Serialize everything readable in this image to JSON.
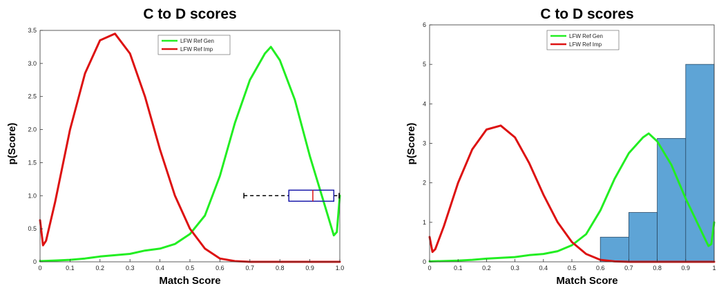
{
  "chart_data": [
    {
      "type": "line",
      "title": "C to D scores",
      "xlabel": "Match Score",
      "ylabel": "p(Score)",
      "xlim": [
        0,
        1
      ],
      "ylim": [
        0,
        3.5
      ],
      "xticks": [
        "0",
        "0.1",
        "0.2",
        "0.3",
        "0.4",
        "0.5",
        "0.6",
        "0.7",
        "0.8",
        "0.9",
        "1.0"
      ],
      "yticks": [
        "0",
        "0.5",
        "1.0",
        "1.5",
        "2.0",
        "2.5",
        "3.0",
        "3.5"
      ],
      "legend_position": "top",
      "grid": false,
      "series": [
        {
          "name": "LFW Ref Gen",
          "color": "#22ee22",
          "x": [
            0,
            0.05,
            0.1,
            0.15,
            0.2,
            0.25,
            0.3,
            0.35,
            0.4,
            0.45,
            0.5,
            0.55,
            0.6,
            0.65,
            0.7,
            0.75,
            0.77,
            0.8,
            0.85,
            0.9,
            0.95,
            0.97,
            0.98,
            0.99,
            1.0
          ],
          "y": [
            0.01,
            0.02,
            0.03,
            0.05,
            0.08,
            0.1,
            0.12,
            0.17,
            0.2,
            0.27,
            0.42,
            0.7,
            1.3,
            2.1,
            2.75,
            3.15,
            3.25,
            3.05,
            2.45,
            1.6,
            0.85,
            0.55,
            0.4,
            0.45,
            1.0
          ]
        },
        {
          "name": "LFW Ref Imp",
          "color": "#dd1111",
          "x": [
            0.0,
            0.01,
            0.02,
            0.05,
            0.1,
            0.15,
            0.2,
            0.25,
            0.3,
            0.35,
            0.4,
            0.45,
            0.5,
            0.55,
            0.6,
            0.65,
            0.7,
            0.8,
            0.9,
            1.0
          ],
          "y": [
            0.63,
            0.25,
            0.32,
            0.9,
            2.0,
            2.85,
            3.35,
            3.45,
            3.15,
            2.5,
            1.7,
            1.0,
            0.5,
            0.2,
            0.05,
            0.01,
            0.0,
            0.0,
            0.0,
            0.0
          ]
        }
      ],
      "boxplot": {
        "orientation": "horizontal",
        "y": 1.0,
        "whisker_low": 0.68,
        "q1": 0.83,
        "median": 0.91,
        "q3": 0.98,
        "whisker_high": 1.0,
        "box_color": "#1a1aaa",
        "median_color": "#dd1111"
      }
    },
    {
      "type": "line",
      "title": "C to D scores",
      "xlabel": "Match Score",
      "ylabel": "p(Score)",
      "xlim": [
        0,
        1
      ],
      "ylim": [
        0,
        6
      ],
      "xticks": [
        "0",
        "0.1",
        "0.2",
        "0.3",
        "0.4",
        "0.5",
        "0.6",
        "0.7",
        "0.8",
        "0.9",
        "1"
      ],
      "yticks": [
        "0",
        "1",
        "2",
        "3",
        "4",
        "5",
        "6"
      ],
      "legend_position": "top",
      "grid": false,
      "series": [
        {
          "name": "LFW Ref Gen",
          "color": "#22ee22",
          "x": [
            0,
            0.05,
            0.1,
            0.15,
            0.2,
            0.25,
            0.3,
            0.35,
            0.4,
            0.45,
            0.5,
            0.55,
            0.6,
            0.65,
            0.7,
            0.75,
            0.77,
            0.8,
            0.85,
            0.9,
            0.95,
            0.97,
            0.98,
            0.99,
            1.0
          ],
          "y": [
            0.01,
            0.02,
            0.03,
            0.05,
            0.08,
            0.1,
            0.12,
            0.17,
            0.2,
            0.27,
            0.42,
            0.7,
            1.3,
            2.1,
            2.75,
            3.15,
            3.25,
            3.05,
            2.45,
            1.6,
            0.85,
            0.55,
            0.4,
            0.45,
            1.0
          ]
        },
        {
          "name": "LFW Ref Imp",
          "color": "#dd1111",
          "x": [
            0.0,
            0.01,
            0.02,
            0.05,
            0.1,
            0.15,
            0.2,
            0.25,
            0.3,
            0.35,
            0.4,
            0.45,
            0.5,
            0.55,
            0.6,
            0.65,
            0.7,
            0.8,
            0.9,
            1.0
          ],
          "y": [
            0.63,
            0.25,
            0.32,
            0.9,
            2.0,
            2.85,
            3.35,
            3.45,
            3.15,
            2.5,
            1.7,
            1.0,
            0.5,
            0.2,
            0.05,
            0.01,
            0.0,
            0.0,
            0.0,
            0.0
          ]
        }
      ],
      "histogram": {
        "color": "#5ea4d6",
        "edge_color": "#2a4a66",
        "bins": [
          {
            "x0": 0.6,
            "x1": 0.7,
            "value": 0.625
          },
          {
            "x0": 0.7,
            "x1": 0.8,
            "value": 1.25
          },
          {
            "x0": 0.8,
            "x1": 0.9,
            "value": 3.125
          },
          {
            "x0": 0.9,
            "x1": 1.0,
            "value": 5.0
          }
        ]
      }
    }
  ]
}
